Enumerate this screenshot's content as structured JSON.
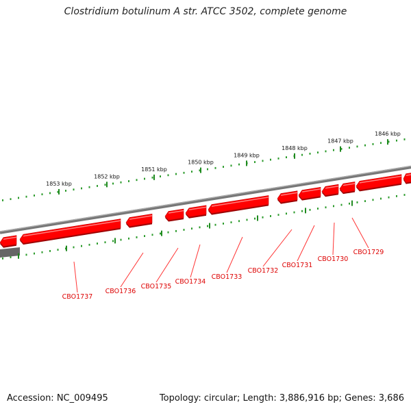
{
  "title": "Clostridium botulinum A str. ATCC 3502, complete genome",
  "footer": {
    "accession": "Accession: NC_009495",
    "genome_info": "Topology: circular; Length: 3,886,916 bp; Genes: 3,686"
  },
  "colors": {
    "gene": "#ff0000",
    "gene_label": "#dd0000",
    "backbone": "#777777",
    "ticks": "#2a9a2a"
  },
  "kbp_labels": [
    "1846 kbp",
    "1847 kbp",
    "1848 kbp",
    "1849 kbp",
    "1850 kbp",
    "1851 kbp",
    "1852 kbp",
    "1853 kbp"
  ],
  "genes": [
    "CBO1729",
    "CBO1730",
    "CBO1731",
    "CBO1732",
    "CBO1733",
    "CBO1734",
    "CBO1735",
    "CBO1736",
    "CBO1737"
  ]
}
